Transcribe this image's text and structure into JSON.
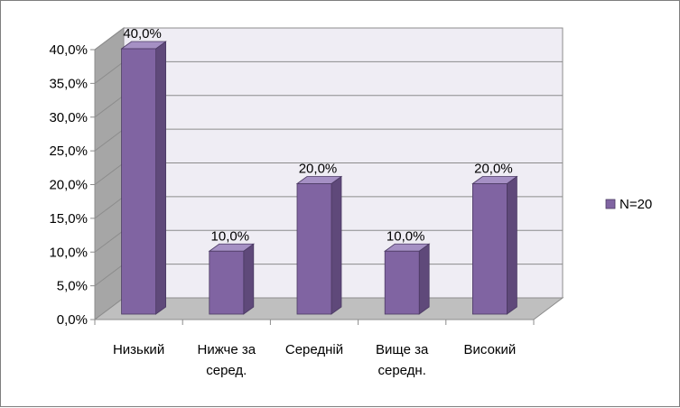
{
  "chart_data": {
    "type": "bar",
    "categories": [
      [
        "Низький"
      ],
      [
        "Нижче за",
        "серед."
      ],
      [
        "Середній"
      ],
      [
        "Вище за",
        "середн."
      ],
      [
        "Високий"
      ]
    ],
    "series": [
      {
        "name": "N=20",
        "values": [
          40.0,
          10.0,
          20.0,
          10.0,
          20.0
        ],
        "labels": [
          "40,0%",
          "10,0%",
          "20,0%",
          "10,0%",
          "20,0%"
        ],
        "color": "#8064a2"
      }
    ],
    "ylim": [
      0,
      40
    ],
    "yticks": [
      "0,0%",
      "5,0%",
      "10,0%",
      "15,0%",
      "20,0%",
      "25,0%",
      "30,0%",
      "35,0%",
      "40,0%"
    ],
    "grid": true,
    "legend_position": "right",
    "colors": {
      "bar_front": "#8064a2",
      "bar_side": "#5f497a",
      "bar_top": "#a590c4",
      "wall": "#efedf4",
      "side_wall": "#a6a6a6",
      "floor": "#bfbfbf"
    }
  }
}
